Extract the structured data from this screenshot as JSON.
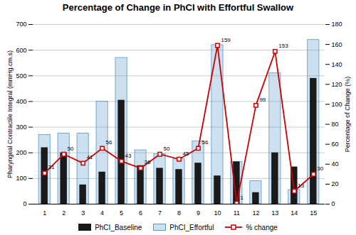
{
  "chart_data": {
    "type": "bar",
    "title": "Percentage of Change in PhCI with Effortful Swallow",
    "categories": [
      1,
      2,
      3,
      4,
      5,
      6,
      7,
      8,
      9,
      10,
      11,
      12,
      13,
      14,
      15
    ],
    "series": [
      {
        "name": "PhCI_Baseline",
        "color": "#1a1a1a",
        "values": [
          220,
          200,
          75,
          125,
          405,
          150,
          140,
          135,
          160,
          110,
          165,
          45,
          200,
          145,
          490
        ]
      },
      {
        "name": "PhCI_Effortful",
        "color": "#5599cc",
        "values": [
          270,
          275,
          275,
          400,
          570,
          210,
          195,
          175,
          245,
          620,
          165,
          90,
          510,
          55,
          640
        ]
      },
      {
        "name": "% change",
        "type": "line",
        "axis": "y2",
        "color": "#cc0000",
        "marker": "square",
        "data_labels": true,
        "values": [
          31,
          50,
          41,
          56,
          43,
          36,
          50,
          45,
          56,
          159,
          1,
          99,
          153,
          13,
          30
        ]
      }
    ],
    "ylabel": "Pharyngeal Contractile Integral (mmHg.cm.s)",
    "y2label": "Percentage of Change (%)",
    "ylim": [
      0,
      700
    ],
    "yticks": [
      0,
      100,
      200,
      300,
      400,
      500,
      600,
      700
    ],
    "y2lim": [
      0,
      180
    ],
    "y2ticks": [
      0,
      20,
      40,
      60,
      80,
      100,
      120,
      140,
      160,
      180
    ],
    "grid": true,
    "legend": "bottom"
  }
}
